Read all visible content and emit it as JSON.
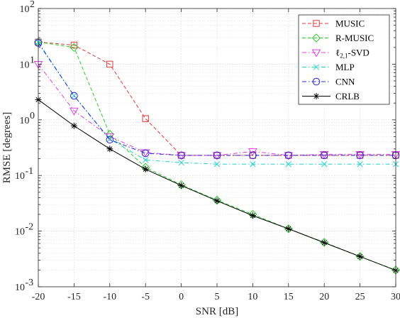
{
  "chart_data": {
    "type": "line",
    "x": [
      -20,
      -15,
      -10,
      -5,
      0,
      5,
      10,
      15,
      20,
      25,
      30
    ],
    "x_tick_labels": [
      "-20",
      "-15",
      "-10",
      "-5",
      "0",
      "5",
      "10",
      "15",
      "20",
      "25",
      "30"
    ],
    "y_tick_labels": [
      {
        "base": "10",
        "exp": "-3"
      },
      {
        "base": "10",
        "exp": "-2"
      },
      {
        "base": "10",
        "exp": "-1"
      },
      {
        "base": "10",
        "exp": "0"
      },
      {
        "base": "10",
        "exp": "1"
      },
      {
        "base": "10",
        "exp": "2"
      }
    ],
    "xlabel": "SNR [dB]",
    "ylabel": "RMSE [degrees]",
    "xlim": [
      -20,
      30
    ],
    "ylim": [
      0.001,
      100
    ],
    "yscale": "log",
    "grid": "major and minor",
    "legend_position": "top-right",
    "series": [
      {
        "name": "MUSIC",
        "color": "#e03a3a",
        "dash": "dashed",
        "marker": "square",
        "values": [
          25,
          22,
          10,
          1.05,
          0.23,
          0.23,
          0.23,
          0.23,
          0.23,
          0.23,
          0.23
        ]
      },
      {
        "name": "R-MUSIC",
        "color": "#2ecc2e",
        "dash": "dashed",
        "marker": "diamond",
        "values": [
          25,
          20,
          0.55,
          0.14,
          0.068,
          0.036,
          0.02,
          0.011,
          0.0063,
          0.0035,
          0.002
        ]
      },
      {
        "name": "ℓ2,1-SVD",
        "name_main": "ℓ",
        "name_sub": "2,1",
        "name_rest": "-SVD",
        "color": "#e040e0",
        "dash": "dashdot",
        "marker": "triangle-down",
        "values": [
          10,
          1.45,
          0.5,
          0.26,
          0.23,
          0.23,
          0.27,
          0.23,
          0.24,
          0.24,
          0.24
        ]
      },
      {
        "name": "MLP",
        "color": "#22d3d3",
        "dash": "dashdot",
        "marker": "x",
        "values": [
          25,
          2.7,
          0.45,
          0.19,
          0.17,
          0.16,
          0.16,
          0.16,
          0.16,
          0.16,
          0.16
        ]
      },
      {
        "name": "CNN",
        "color": "#2a2ad4",
        "dash": "dashdot",
        "marker": "circle",
        "values": [
          24,
          2.7,
          0.44,
          0.25,
          0.23,
          0.23,
          0.23,
          0.23,
          0.23,
          0.23,
          0.23
        ]
      },
      {
        "name": "CRLB",
        "color": "#000000",
        "dash": "solid",
        "marker": "asterisk",
        "values": [
          2.3,
          0.78,
          0.3,
          0.13,
          0.066,
          0.035,
          0.019,
          0.011,
          0.0062,
          0.0035,
          0.00197
        ]
      }
    ]
  }
}
